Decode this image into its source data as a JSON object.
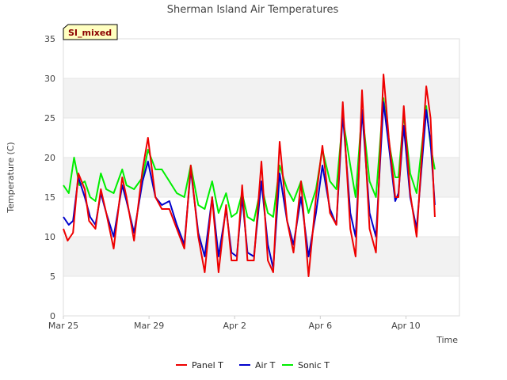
{
  "chart_data": {
    "type": "line",
    "title": "Sherman Island Air Temperatures",
    "badge": "SI_mixed",
    "xlabel": "Time",
    "ylabel": "Temperature (C)",
    "ylim": [
      0,
      35
    ],
    "yticks": [
      0,
      5,
      10,
      15,
      20,
      25,
      30,
      35
    ],
    "xlim": [
      0,
      18.5
    ],
    "xticks": [
      {
        "value": 0,
        "label": "Mar 25"
      },
      {
        "value": 4,
        "label": "Mar 29"
      },
      {
        "value": 8,
        "label": "Apr 2"
      },
      {
        "value": 12,
        "label": "Apr 6"
      },
      {
        "value": 16,
        "label": "Apr 10"
      }
    ],
    "grid": "horizontal bands",
    "legend_position": "bottom",
    "series": [
      {
        "name": "Panel T",
        "color": "#ee0000",
        "points": [
          [
            0.0,
            11.0
          ],
          [
            0.2,
            9.5
          ],
          [
            0.45,
            10.5
          ],
          [
            0.7,
            18.0
          ],
          [
            1.0,
            16.0
          ],
          [
            1.2,
            12.0
          ],
          [
            1.5,
            11.0
          ],
          [
            1.75,
            16.0
          ],
          [
            2.0,
            13.0
          ],
          [
            2.35,
            8.5
          ],
          [
            2.75,
            17.5
          ],
          [
            2.95,
            15.0
          ],
          [
            3.3,
            9.5
          ],
          [
            3.7,
            18.5
          ],
          [
            3.95,
            22.5
          ],
          [
            4.3,
            15.0
          ],
          [
            4.6,
            13.5
          ],
          [
            4.95,
            13.5
          ],
          [
            5.3,
            11.0
          ],
          [
            5.65,
            8.5
          ],
          [
            5.95,
            19.0
          ],
          [
            6.3,
            10.0
          ],
          [
            6.6,
            5.5
          ],
          [
            6.95,
            15.0
          ],
          [
            7.25,
            5.5
          ],
          [
            7.6,
            14.0
          ],
          [
            7.85,
            7.0
          ],
          [
            8.1,
            7.0
          ],
          [
            8.35,
            16.5
          ],
          [
            8.6,
            7.0
          ],
          [
            8.9,
            7.0
          ],
          [
            9.25,
            19.5
          ],
          [
            9.55,
            7.0
          ],
          [
            9.8,
            5.5
          ],
          [
            10.1,
            22.0
          ],
          [
            10.45,
            12.0
          ],
          [
            10.75,
            8.0
          ],
          [
            11.1,
            17.0
          ],
          [
            11.45,
            5.0
          ],
          [
            11.8,
            15.0
          ],
          [
            12.1,
            21.5
          ],
          [
            12.45,
            13.0
          ],
          [
            12.75,
            11.5
          ],
          [
            13.05,
            27.0
          ],
          [
            13.4,
            11.0
          ],
          [
            13.65,
            7.5
          ],
          [
            13.95,
            28.5
          ],
          [
            14.3,
            11.0
          ],
          [
            14.6,
            8.0
          ],
          [
            14.95,
            30.5
          ],
          [
            15.2,
            22.5
          ],
          [
            15.5,
            15.0
          ],
          [
            15.65,
            15.0
          ],
          [
            15.9,
            26.5
          ],
          [
            16.2,
            15.5
          ],
          [
            16.5,
            10.0
          ],
          [
            16.95,
            29.0
          ],
          [
            17.15,
            25.0
          ],
          [
            17.35,
            12.5
          ]
        ]
      },
      {
        "name": "Air T",
        "color": "#0000cc",
        "points": [
          [
            0.0,
            12.5
          ],
          [
            0.25,
            11.5
          ],
          [
            0.45,
            12.0
          ],
          [
            0.7,
            17.5
          ],
          [
            1.0,
            15.0
          ],
          [
            1.25,
            12.5
          ],
          [
            1.5,
            11.5
          ],
          [
            1.75,
            15.5
          ],
          [
            2.0,
            13.0
          ],
          [
            2.35,
            10.0
          ],
          [
            2.75,
            16.5
          ],
          [
            2.95,
            14.5
          ],
          [
            3.3,
            10.5
          ],
          [
            3.7,
            17.0
          ],
          [
            3.95,
            19.5
          ],
          [
            4.3,
            15.0
          ],
          [
            4.6,
            14.0
          ],
          [
            4.95,
            14.5
          ],
          [
            5.3,
            11.5
          ],
          [
            5.65,
            9.0
          ],
          [
            5.95,
            18.5
          ],
          [
            6.3,
            10.5
          ],
          [
            6.6,
            7.5
          ],
          [
            6.95,
            15.0
          ],
          [
            7.25,
            7.5
          ],
          [
            7.6,
            13.5
          ],
          [
            7.85,
            8.0
          ],
          [
            8.1,
            7.5
          ],
          [
            8.35,
            15.0
          ],
          [
            8.6,
            8.0
          ],
          [
            8.9,
            7.5
          ],
          [
            9.25,
            17.0
          ],
          [
            9.55,
            9.0
          ],
          [
            9.8,
            6.0
          ],
          [
            10.1,
            18.0
          ],
          [
            10.45,
            12.0
          ],
          [
            10.75,
            9.0
          ],
          [
            11.1,
            15.0
          ],
          [
            11.45,
            7.5
          ],
          [
            11.8,
            13.0
          ],
          [
            12.1,
            19.0
          ],
          [
            12.45,
            13.5
          ],
          [
            12.75,
            11.5
          ],
          [
            13.05,
            25.5
          ],
          [
            13.4,
            13.0
          ],
          [
            13.65,
            10.0
          ],
          [
            13.95,
            26.0
          ],
          [
            14.3,
            13.0
          ],
          [
            14.6,
            10.0
          ],
          [
            14.95,
            27.0
          ],
          [
            15.2,
            21.5
          ],
          [
            15.5,
            14.5
          ],
          [
            15.65,
            15.5
          ],
          [
            15.9,
            24.0
          ],
          [
            16.2,
            15.0
          ],
          [
            16.5,
            11.0
          ],
          [
            16.95,
            26.0
          ],
          [
            17.15,
            22.0
          ],
          [
            17.35,
            14.0
          ]
        ]
      },
      {
        "name": "Sonic T",
        "color": "#00ee00",
        "points": [
          [
            0.0,
            16.5
          ],
          [
            0.25,
            15.5
          ],
          [
            0.5,
            20.0
          ],
          [
            0.75,
            16.5
          ],
          [
            1.0,
            17.0
          ],
          [
            1.25,
            15.0
          ],
          [
            1.5,
            14.5
          ],
          [
            1.75,
            18.0
          ],
          [
            2.0,
            16.0
          ],
          [
            2.35,
            15.5
          ],
          [
            2.75,
            18.5
          ],
          [
            2.95,
            16.5
          ],
          [
            3.3,
            16.0
          ],
          [
            3.7,
            17.5
          ],
          [
            3.95,
            21.0
          ],
          [
            4.3,
            18.5
          ],
          [
            4.6,
            18.5
          ],
          [
            4.95,
            17.0
          ],
          [
            5.3,
            15.5
          ],
          [
            5.65,
            15.0
          ],
          [
            5.95,
            19.0
          ],
          [
            6.3,
            14.0
          ],
          [
            6.6,
            13.5
          ],
          [
            6.95,
            17.0
          ],
          [
            7.25,
            13.0
          ],
          [
            7.6,
            15.5
          ],
          [
            7.85,
            12.5
          ],
          [
            8.1,
            13.0
          ],
          [
            8.35,
            15.5
          ],
          [
            8.6,
            12.5
          ],
          [
            8.9,
            12.0
          ],
          [
            9.25,
            16.5
          ],
          [
            9.55,
            13.0
          ],
          [
            9.8,
            12.5
          ],
          [
            10.1,
            19.0
          ],
          [
            10.45,
            16.0
          ],
          [
            10.75,
            14.5
          ],
          [
            11.1,
            17.0
          ],
          [
            11.45,
            13.0
          ],
          [
            11.8,
            16.0
          ],
          [
            12.1,
            21.0
          ],
          [
            12.45,
            17.0
          ],
          [
            12.75,
            16.0
          ],
          [
            13.05,
            25.0
          ],
          [
            13.4,
            19.0
          ],
          [
            13.65,
            15.0
          ],
          [
            13.95,
            26.0
          ],
          [
            14.3,
            17.0
          ],
          [
            14.6,
            15.0
          ],
          [
            14.95,
            27.5
          ],
          [
            15.2,
            22.0
          ],
          [
            15.5,
            17.5
          ],
          [
            15.65,
            17.5
          ],
          [
            15.9,
            25.5
          ],
          [
            16.2,
            18.0
          ],
          [
            16.5,
            15.5
          ],
          [
            16.95,
            26.5
          ],
          [
            17.15,
            21.5
          ],
          [
            17.35,
            18.5
          ]
        ]
      }
    ]
  }
}
